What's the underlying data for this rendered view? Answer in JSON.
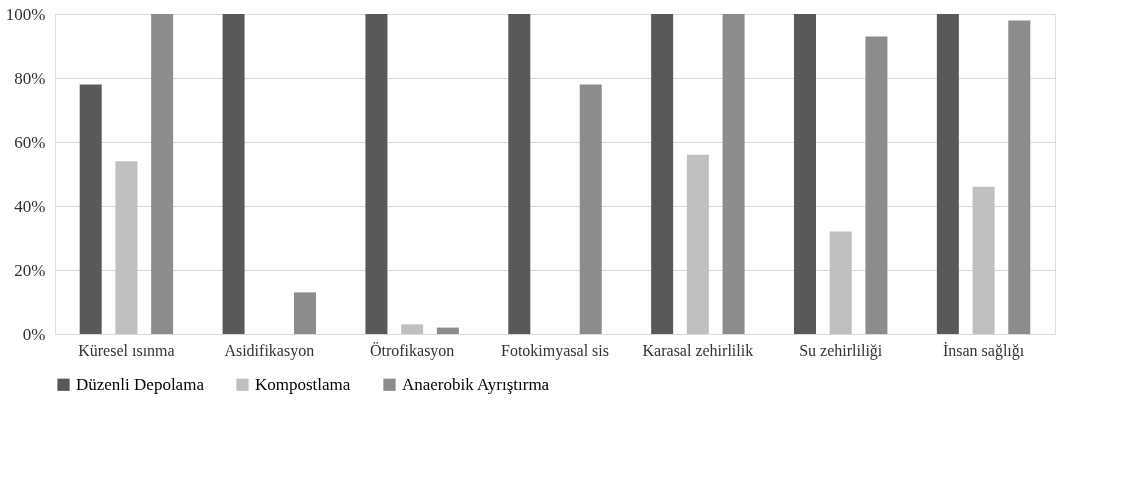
{
  "chart_data": {
    "type": "bar",
    "categories": [
      "Küresel ısınma",
      "Asidifikasyon",
      "Ötrofikasyon",
      "Fotokimyasal sis",
      "Karasal zehirlilik",
      "Su zehirliliği",
      "İnsan sağlığı"
    ],
    "series": [
      {
        "name": "Düzenli Depolama",
        "color": "#595959",
        "values": [
          78,
          100,
          100,
          100,
          100,
          100,
          100
        ]
      },
      {
        "name": "Kompostlama",
        "color": "#bfbfbf",
        "values": [
          54,
          0,
          3,
          0,
          56,
          32,
          46
        ]
      },
      {
        "name": "Anaerobik Ayrıştırma",
        "color": "#8c8c8c",
        "values": [
          100,
          13,
          2,
          78,
          100,
          93,
          98
        ]
      }
    ],
    "ylim": [
      0,
      100
    ],
    "yticks": [
      {
        "value": 0,
        "label": "0%"
      },
      {
        "value": 20,
        "label": "20%"
      },
      {
        "value": 40,
        "label": "40%"
      },
      {
        "value": 60,
        "label": "60%"
      },
      {
        "value": 80,
        "label": "80%"
      },
      {
        "value": 100,
        "label": "100%"
      }
    ],
    "grid": "y",
    "legend": "bottom"
  }
}
